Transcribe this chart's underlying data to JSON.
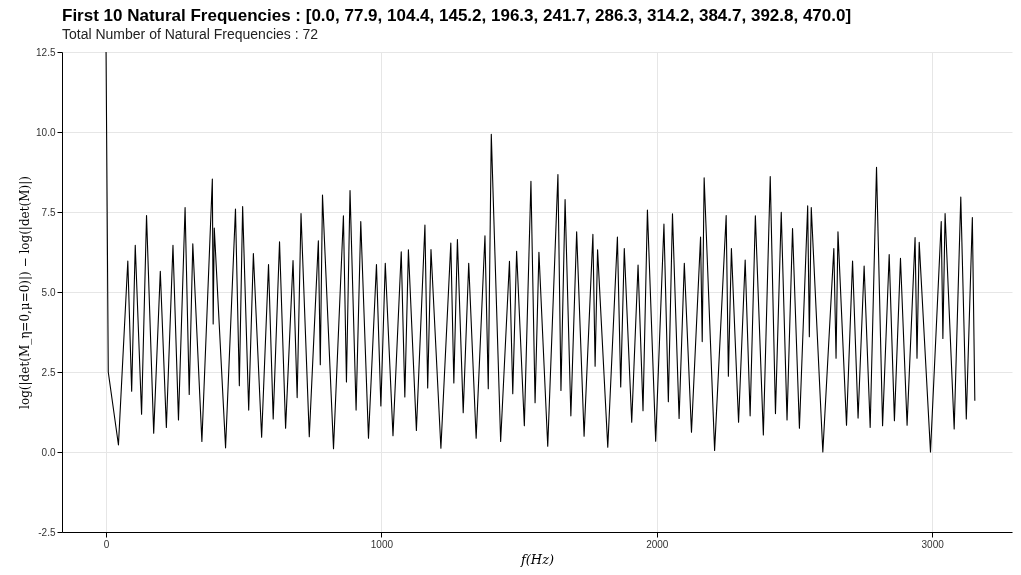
{
  "chart_data": {
    "type": "line",
    "title": "First 10 Natural Frequencies : [0.0, 77.9, 104.4, 145.2, 196.3, 241.7, 286.3, 314.2, 384.7, 392.8, 470.0]",
    "subtitle": "Total Number of Natural Frequencies : 72",
    "xlabel": "f(Hz)",
    "ylabel": "log(|det(M_η=0,μ=0)|) − log(|det(M)|)",
    "series": [
      {
        "color": "#000000",
        "x": [
          0,
          8,
          45,
          79,
          93,
          106,
          129,
          147,
          173,
          197,
          219,
          243,
          263,
          287,
          302,
          315,
          348,
          386,
          389,
          393,
          434,
          470,
          484,
          496,
          518,
          535,
          565,
          590,
          607,
          630,
          652,
          679,
          694,
          708,
          738,
          771,
          778,
          786,
          826,
          862,
          873,
          886,
          908,
          925,
          953,
          982,
          998,
          1014,
          1042,
          1072,
          1085,
          1098,
          1127,
          1158,
          1168,
          1180,
          1216,
          1252,
          1263,
          1276,
          1297,
          1317,
          1344,
          1376,
          1388,
          1399,
          1433,
          1465,
          1477,
          1491,
          1519,
          1543,
          1558,
          1572,
          1604,
          1641,
          1652,
          1667,
          1688,
          1709,
          1736,
          1768,
          1776,
          1785,
          1822,
          1857,
          1869,
          1882,
          1909,
          1932,
          1950,
          1966,
          1996,
          2026,
          2042,
          2057,
          2081,
          2100,
          2126,
          2159,
          2165,
          2172,
          2210,
          2252,
          2260,
          2271,
          2297,
          2321,
          2339,
          2358,
          2387,
          2412,
          2431,
          2452,
          2473,
          2493,
          2518,
          2548,
          2554,
          2561,
          2603,
          2643,
          2651,
          2658,
          2689,
          2711,
          2731,
          2753,
          2775,
          2798,
          2820,
          2844,
          2863,
          2885,
          2909,
          2938,
          2945,
          2953,
          2994,
          3033,
          3039,
          3047,
          3080,
          3104,
          3124,
          3146,
          3155
        ],
        "values": [
          12.5,
          2.5,
          0.22,
          5.97,
          1.9,
          6.46,
          1.18,
          7.39,
          0.59,
          5.65,
          0.77,
          6.46,
          1.0,
          7.64,
          1.8,
          6.51,
          0.33,
          8.53,
          4.0,
          7.0,
          0.13,
          7.59,
          2.07,
          7.67,
          1.31,
          6.2,
          0.46,
          5.86,
          1.03,
          6.57,
          0.74,
          5.98,
          1.7,
          7.45,
          0.48,
          6.6,
          2.73,
          8.03,
          0.1,
          7.38,
          2.19,
          8.17,
          1.31,
          7.2,
          0.43,
          5.86,
          1.44,
          5.9,
          0.51,
          6.26,
          1.72,
          6.32,
          0.67,
          7.09,
          2.0,
          6.33,
          0.12,
          6.53,
          2.16,
          6.64,
          1.23,
          5.9,
          0.43,
          6.76,
          1.98,
          9.93,
          0.33,
          5.96,
          1.82,
          6.27,
          0.82,
          8.46,
          1.54,
          6.24,
          0.18,
          8.67,
          1.92,
          7.89,
          1.13,
          6.88,
          0.49,
          6.8,
          2.68,
          6.32,
          0.15,
          6.72,
          2.03,
          6.36,
          0.93,
          5.84,
          1.29,
          7.56,
          0.34,
          7.12,
          1.57,
          7.44,
          1.05,
          5.9,
          0.62,
          6.72,
          3.45,
          8.57,
          0.05,
          7.39,
          2.37,
          6.36,
          0.93,
          6.0,
          1.13,
          7.38,
          0.53,
          8.61,
          1.2,
          7.49,
          1.0,
          6.98,
          0.74,
          7.69,
          3.6,
          7.64,
          0.0,
          6.36,
          2.93,
          6.88,
          0.84,
          5.97,
          1.06,
          5.81,
          0.77,
          8.9,
          0.82,
          6.17,
          0.98,
          6.05,
          0.84,
          6.7,
          2.93,
          6.55,
          0.0,
          7.2,
          3.55,
          7.45,
          0.72,
          7.97,
          1.03,
          7.33,
          1.6
        ]
      }
    ],
    "xlim": [
      -160,
      3290
    ],
    "xticks": [
      0,
      1000,
      2000,
      3000
    ],
    "ylim": [
      -2.5,
      12.5
    ],
    "yticks": [
      {
        "value": -2.5,
        "label": "-2.5"
      },
      {
        "value": 0,
        "label": "0.0"
      },
      {
        "value": 2.5,
        "label": "2.5"
      },
      {
        "value": 5,
        "label": "5.0"
      },
      {
        "value": 7.5,
        "label": "7.5"
      },
      {
        "value": 10,
        "label": "10.0"
      },
      {
        "value": 12.5,
        "label": "12.5"
      }
    ],
    "grid": true,
    "line_style": "solid",
    "marker": "none"
  }
}
